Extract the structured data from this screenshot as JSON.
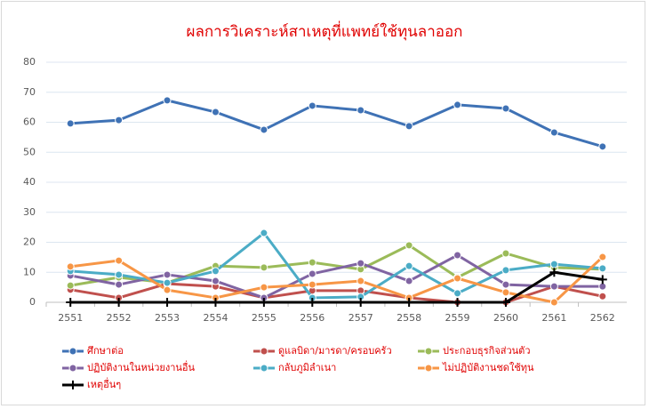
{
  "chart_data": {
    "type": "line",
    "title": "ผลการวิเคราะห์สาเหตุที่แพทย์ใช้ทุนลาออก",
    "categories": [
      "2551",
      "2552",
      "2553",
      "2554",
      "2555",
      "2556",
      "2557",
      "2558",
      "2559",
      "2560",
      "2561",
      "2562"
    ],
    "ylim": [
      0,
      80
    ],
    "yticks": [
      0,
      10,
      20,
      30,
      40,
      50,
      60,
      70,
      80
    ],
    "grid": true,
    "series": [
      {
        "name": "ศึกษาต่อ",
        "color": "#3f72b5",
        "marker": "circle",
        "values": [
          59.6,
          60.7,
          67.3,
          63.4,
          57.5,
          65.5,
          64,
          58.7,
          65.8,
          64.6,
          56.6,
          51.9
        ]
      },
      {
        "name": "ดูแลบิดา/มารดา/ครอบครัว",
        "color": "#c0504d",
        "marker": "circle",
        "values": [
          4.2,
          1.5,
          6.2,
          5.3,
          1.5,
          3.9,
          3.9,
          1.5,
          0,
          0,
          5.3,
          2
        ]
      },
      {
        "name": "ประกอบธุรกิจส่วนตัว",
        "color": "#9bbb59",
        "marker": "circle",
        "values": [
          5.6,
          8.3,
          6.5,
          12.1,
          11.6,
          13.3,
          11,
          19,
          8.3,
          16.3,
          11.6,
          11
        ]
      },
      {
        "name": "ปฏิบัติงานในหน่วยงานอื่น",
        "color": "#8064a2",
        "marker": "circle",
        "values": [
          8.9,
          5.9,
          9.2,
          7.1,
          1.5,
          9.5,
          13,
          7.1,
          15.7,
          5.9,
          5.3,
          5.3
        ]
      },
      {
        "name": "กลับภูมิลำเนา",
        "color": "#4bacc6",
        "marker": "circle",
        "values": [
          10.4,
          9.2,
          6.5,
          10.4,
          23.1,
          1.5,
          1.8,
          12.1,
          3,
          10.7,
          12.7,
          11.3
        ]
      },
      {
        "name": "ไม่ปฏิบัติงานชดใช้ทุน",
        "color": "#f79646",
        "marker": "circle",
        "values": [
          11.9,
          13.9,
          4.1,
          1.5,
          5,
          5.9,
          7.1,
          1.5,
          8,
          3.3,
          0,
          15.1
        ]
      },
      {
        "name": "เหตุอื่นๆ",
        "color": "#000000",
        "marker": "plus",
        "values": [
          0,
          0,
          0,
          0,
          0,
          0,
          0,
          0,
          0,
          0,
          10,
          7.6
        ]
      }
    ]
  }
}
